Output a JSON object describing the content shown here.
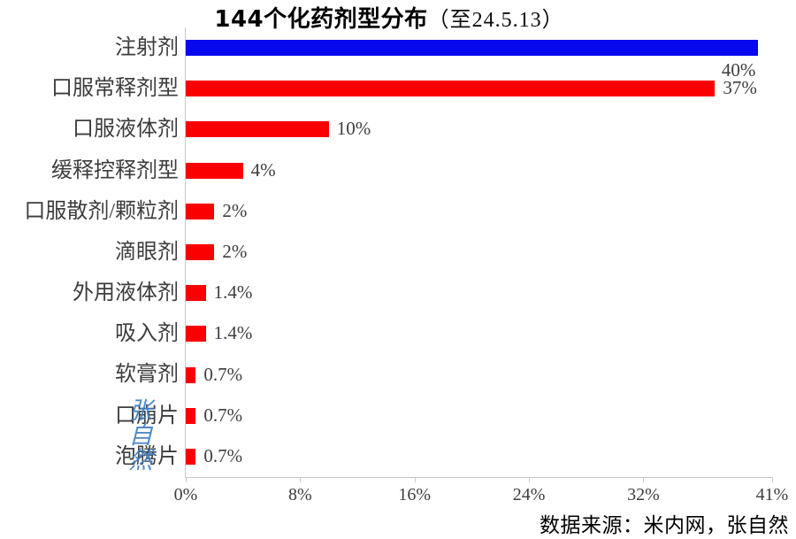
{
  "title": {
    "main": "144个化药剂型分布",
    "suffix": "（至24.5.13）"
  },
  "source_credit": "数据来源：米内网，张自然",
  "watermark": {
    "chars": [
      "张",
      "自",
      "然"
    ],
    "color": "#4080C4"
  },
  "colors": {
    "highlight_bar": "#0808EE",
    "default_bar": "#FB0000",
    "axis_line": "#C9C9C9",
    "label_text": "#3D3D3D",
    "title_text": "#000000"
  },
  "chart_data": {
    "type": "bar",
    "orientation": "horizontal",
    "title": "144个化药剂型分布（至24.5.13）",
    "categories": [
      "注射剂",
      "口服常释剂型",
      "口服液体剂",
      "缓释控释剂型",
      "口服散剂/颗粒剂",
      "滴眼剂",
      "外用液体剂",
      "吸入剂",
      "软膏剂",
      "口崩片",
      "泡腾片"
    ],
    "values": [
      40,
      37,
      10,
      4,
      2,
      2,
      1.4,
      1.4,
      0.7,
      0.7,
      0.7
    ],
    "value_labels": [
      "40%",
      "37%",
      "10%",
      "4%",
      "2%",
      "2%",
      "1.4%",
      "1.4%",
      "0.7%",
      "0.7%",
      "0.7%"
    ],
    "bar_colors": [
      "#0808EE",
      "#FB0000",
      "#FB0000",
      "#FB0000",
      "#FB0000",
      "#FB0000",
      "#FB0000",
      "#FB0000",
      "#FB0000",
      "#FB0000",
      "#FB0000"
    ],
    "x_ticks": [
      "0%",
      "8%",
      "16%",
      "24%",
      "32%",
      "41%"
    ],
    "x_tick_values": [
      0,
      8,
      16,
      24,
      32,
      41
    ],
    "xlim": [
      0,
      41
    ],
    "grid": false,
    "legend": false,
    "value_label_position": "outside-end"
  }
}
